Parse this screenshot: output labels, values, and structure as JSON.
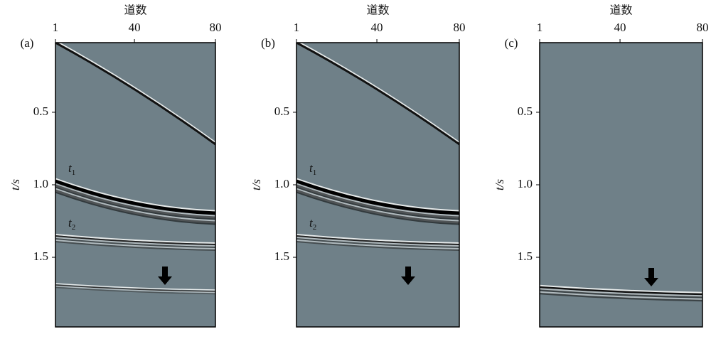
{
  "chart_data": [
    {
      "type": "image",
      "panel_label": "(a)",
      "xlabel": "道数",
      "ylabel": "t/s",
      "xlim": [
        1,
        80
      ],
      "xticks": [
        1,
        40,
        80
      ],
      "ylim": [
        0.02,
        1.98
      ],
      "yticks": [
        0.5,
        {
          "value": 1,
          "label": "1.0"
        },
        1.5
      ],
      "annotations": [
        {
          "text": "t",
          "sub": "1"
        },
        {
          "text": "t",
          "sub": "2"
        }
      ]
    },
    {
      "type": "image",
      "panel_label": "(b)",
      "xlabel": "道数",
      "ylabel": "t/s",
      "xlim": [
        1,
        80
      ],
      "xticks": [
        1,
        40,
        80
      ],
      "ylim": [
        0.02,
        1.98
      ],
      "yticks": [
        0.5,
        {
          "value": 1,
          "label": "1.0"
        },
        1.5
      ],
      "annotations": [
        {
          "text": "t",
          "sub": "1"
        },
        {
          "text": "t",
          "sub": "2"
        }
      ]
    },
    {
      "type": "image",
      "panel_label": "(c)",
      "xlabel": "道数",
      "ylabel": "t/s",
      "xlim": [
        1,
        80
      ],
      "xticks": [
        1,
        40,
        80
      ],
      "ylim": [
        0.02,
        1.98
      ],
      "yticks": [
        0.5,
        {
          "value": 1,
          "label": "1.0"
        },
        1.5
      ]
    }
  ]
}
